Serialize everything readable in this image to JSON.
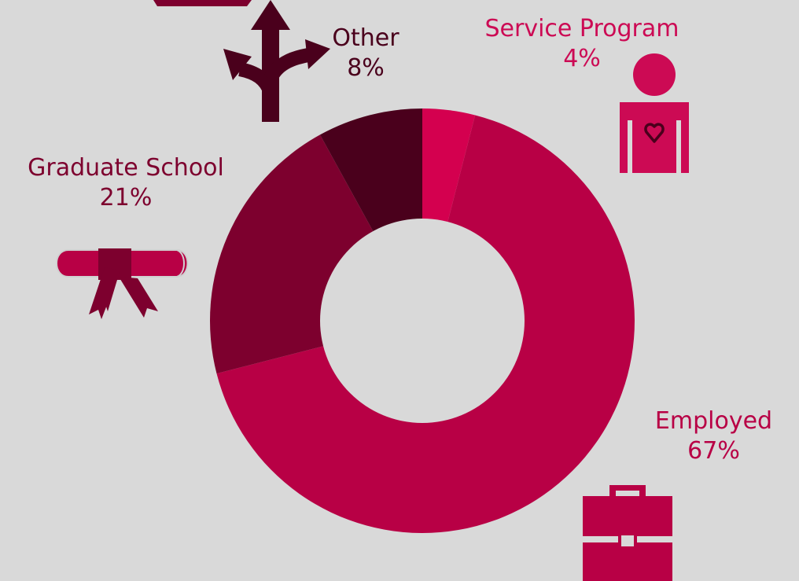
{
  "chart_data": {
    "type": "pie",
    "variant": "donut",
    "title": "",
    "start_angle_deg": 0,
    "direction": "clockwise",
    "slices": [
      {
        "label": "Service Program",
        "value": 4,
        "value_label": "4%",
        "color": "#d4004f",
        "icon": "person-heart-icon"
      },
      {
        "label": "Employed",
        "value": 67,
        "value_label": "67%",
        "color": "#b80045",
        "icon": "briefcase-icon"
      },
      {
        "label": "Graduate School",
        "value": 21,
        "value_label": "21%",
        "color": "#7d002e",
        "icon": "diploma-icon"
      },
      {
        "label": "Other",
        "value": 8,
        "value_label": "8%",
        "color": "#4a001c",
        "icon": "diverging-arrows-icon"
      }
    ]
  },
  "colors": {
    "background": "#d9d9d9",
    "label_service": "#cc0a54",
    "label_employed": "#b80045",
    "label_graduate": "#7d002e",
    "label_other": "#4a001c"
  }
}
